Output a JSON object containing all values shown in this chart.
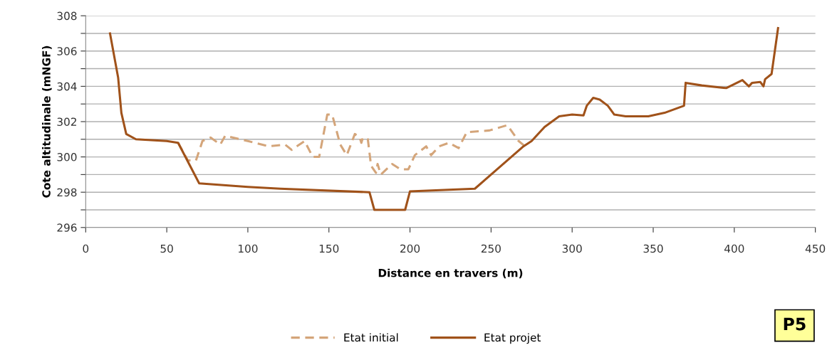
{
  "chart_data": {
    "type": "line",
    "xlabel": "Distance en travers (m)",
    "ylabel": "Cote altitudinale (mNGF)",
    "xlim": [
      0,
      450
    ],
    "xticks": [
      0,
      50,
      100,
      150,
      200,
      250,
      300,
      350,
      400,
      450
    ],
    "ylim": [
      296,
      308
    ],
    "yticks": [
      296,
      {
        "value": 297,
        "label": null
      },
      298,
      {
        "value": 299,
        "label": null
      },
      300,
      {
        "value": 301,
        "label": null
      },
      302,
      {
        "value": 303,
        "label": null
      },
      304,
      {
        "value": 305,
        "label": null
      },
      306,
      {
        "value": 307,
        "label": null
      },
      308
    ],
    "grid": "y",
    "legend": "bottom",
    "annotations": [
      "P5"
    ],
    "series": [
      {
        "name": "Etat initial",
        "color": "#d4a57a",
        "line_style": "dashed",
        "x": [
          57,
          63,
          68,
          72,
          77,
          83,
          86,
          100,
          113,
          123,
          127,
          135,
          140,
          144,
          149,
          152,
          157,
          161,
          166,
          169,
          170,
          171,
          174,
          176,
          179,
          180,
          182,
          189,
          194,
          199,
          203,
          210,
          213,
          218,
          224,
          230,
          235,
          249,
          260,
          267,
          271
        ],
        "values": [
          300.8,
          299.8,
          299.8,
          300.9,
          301.1,
          300.7,
          301.2,
          300.9,
          300.6,
          300.7,
          300.4,
          300.9,
          300.0,
          300.0,
          302.4,
          302.4,
          300.7,
          300.1,
          301.3,
          301.1,
          300.8,
          301.1,
          301.0,
          299.5,
          299.1,
          299.6,
          299.0,
          299.6,
          299.3,
          299.3,
          300.1,
          300.6,
          300.1,
          300.6,
          300.8,
          300.5,
          301.4,
          301.5,
          301.8,
          300.9,
          300.6
        ]
      },
      {
        "name": "Etat projet",
        "color": "#a0521a",
        "line_style": "solid",
        "x": [
          15,
          20,
          22,
          25,
          31,
          50,
          57,
          70,
          100,
          120,
          175,
          178,
          197,
          200,
          240,
          270,
          275,
          283,
          292,
          300,
          307,
          309,
          313,
          317,
          322,
          326,
          333,
          347,
          357,
          369,
          370,
          380,
          395,
          405,
          409,
          411,
          416,
          418,
          419,
          423,
          427
        ],
        "values": [
          307.0,
          304.5,
          302.5,
          301.3,
          301.0,
          300.9,
          300.8,
          298.5,
          298.3,
          298.2,
          298.0,
          297.0,
          297.0,
          298.05,
          298.2,
          300.6,
          300.9,
          301.7,
          302.3,
          302.4,
          302.35,
          302.9,
          303.35,
          303.25,
          302.9,
          302.4,
          302.3,
          302.3,
          302.5,
          302.9,
          304.2,
          304.05,
          303.9,
          304.35,
          304.0,
          304.2,
          304.25,
          304.0,
          304.4,
          304.7,
          307.3
        ]
      }
    ]
  }
}
